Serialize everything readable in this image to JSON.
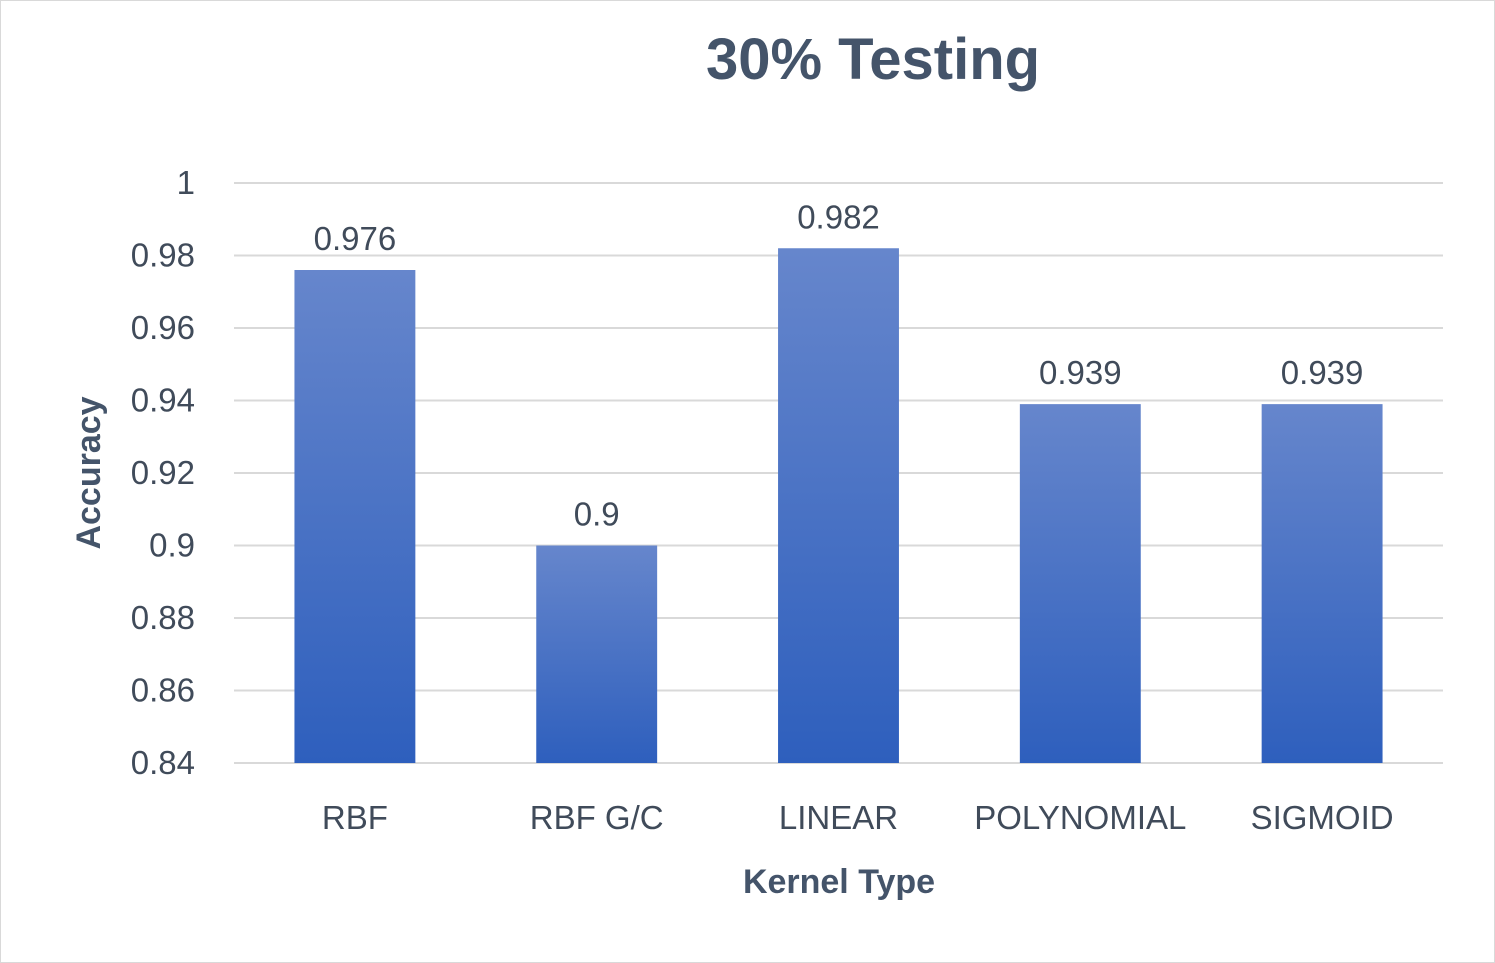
{
  "chart_data": {
    "type": "bar",
    "title": "30% Testing",
    "xlabel": "Kernel Type",
    "ylabel": "Accuracy",
    "categories": [
      "RBF",
      "RBF G/C",
      "LINEAR",
      "POLYNOMIAL",
      "SIGMOID"
    ],
    "values": [
      0.976,
      0.9,
      0.982,
      0.939,
      0.939
    ],
    "data_labels": [
      "0.976",
      "0.9",
      "0.982",
      "0.939",
      "0.939"
    ],
    "ylim": [
      0.84,
      1
    ],
    "yticks": [
      "0.84",
      "0.86",
      "0.88",
      "0.9",
      "0.92",
      "0.94",
      "0.96",
      "0.98",
      "1"
    ],
    "grid": true,
    "legend": "none",
    "colors": {
      "bar_top": "#6686cc",
      "bar_bottom": "#2e5fbd",
      "text": "#404b5a",
      "title": "#44546a",
      "grid": "#d9d9d9"
    }
  }
}
